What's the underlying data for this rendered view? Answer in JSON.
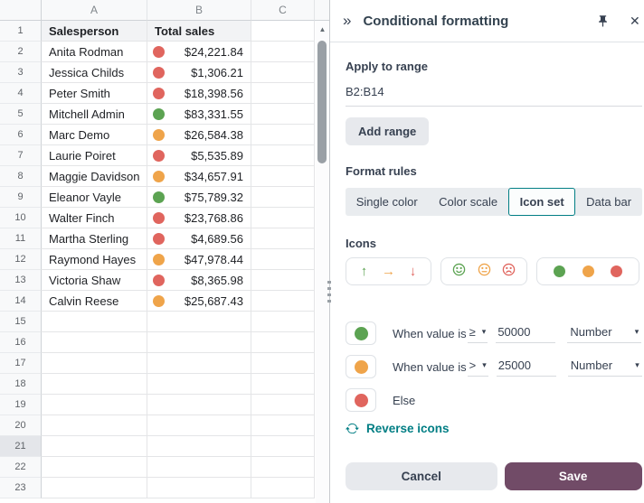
{
  "colors": {
    "green": "#5ca352",
    "orange": "#efa44a",
    "red": "#e0655e",
    "teal": "#017e84",
    "save": "#714b67"
  },
  "glyphs": {
    "collapse": "»",
    "close": "✕",
    "caret": "▾",
    "scroll_up": "▲",
    "arrow_up": "↑",
    "arrow_right": "→",
    "arrow_down": "↓"
  },
  "panel": {
    "title": "Conditional formatting",
    "apply_to_range_label": "Apply to range",
    "range_value": "B2:B14",
    "add_range_label": "Add range",
    "format_rules_label": "Format rules",
    "tabs": [
      {
        "label": "Single color",
        "selected": false
      },
      {
        "label": "Color scale",
        "selected": false
      },
      {
        "label": "Icon set",
        "selected": true
      },
      {
        "label": "Data bar",
        "selected": false
      }
    ],
    "icons_label": "Icons",
    "icon_sets": [
      "arrows",
      "smileys",
      "dots"
    ],
    "rules": [
      {
        "icon": "green",
        "label": "When value is",
        "operator": "≥",
        "value": "50000",
        "type": "Number"
      },
      {
        "icon": "orange",
        "label": "When value is",
        "operator": ">",
        "value": "25000",
        "type": "Number"
      },
      {
        "icon": "red",
        "label": "Else"
      }
    ],
    "reverse_icons_label": "Reverse icons",
    "cancel_label": "Cancel",
    "save_label": "Save"
  },
  "sheet": {
    "columns": [
      "A",
      "B",
      "C"
    ],
    "active_row": 21,
    "rows": [
      {
        "n": 1,
        "a": "Salesperson",
        "b": "Total sales",
        "header": true
      },
      {
        "n": 2,
        "a": "Anita Rodman",
        "icon": "red",
        "b": "$24,221.84"
      },
      {
        "n": 3,
        "a": "Jessica Childs",
        "icon": "red",
        "b": "$1,306.21"
      },
      {
        "n": 4,
        "a": "Peter Smith",
        "icon": "red",
        "b": "$18,398.56"
      },
      {
        "n": 5,
        "a": "Mitchell Admin",
        "icon": "green",
        "b": "$83,331.55"
      },
      {
        "n": 6,
        "a": "Marc Demo",
        "icon": "orange",
        "b": "$26,584.38"
      },
      {
        "n": 7,
        "a": "Laurie Poiret",
        "icon": "red",
        "b": "$5,535.89"
      },
      {
        "n": 8,
        "a": "Maggie Davidson",
        "icon": "orange",
        "b": "$34,657.91"
      },
      {
        "n": 9,
        "a": "Eleanor Vayle",
        "icon": "green",
        "b": "$75,789.32"
      },
      {
        "n": 10,
        "a": "Walter Finch",
        "icon": "red",
        "b": "$23,768.86"
      },
      {
        "n": 11,
        "a": "Martha Sterling",
        "icon": "red",
        "b": "$4,689.56"
      },
      {
        "n": 12,
        "a": "Raymond Hayes",
        "icon": "orange",
        "b": "$47,978.44"
      },
      {
        "n": 13,
        "a": "Victoria Shaw",
        "icon": "red",
        "b": "$8,365.98"
      },
      {
        "n": 14,
        "a": "Calvin Reese",
        "icon": "orange",
        "b": "$25,687.43"
      },
      {
        "n": 15
      },
      {
        "n": 16
      },
      {
        "n": 17
      },
      {
        "n": 18
      },
      {
        "n": 19
      },
      {
        "n": 20
      },
      {
        "n": 21
      },
      {
        "n": 22
      },
      {
        "n": 23
      }
    ]
  }
}
